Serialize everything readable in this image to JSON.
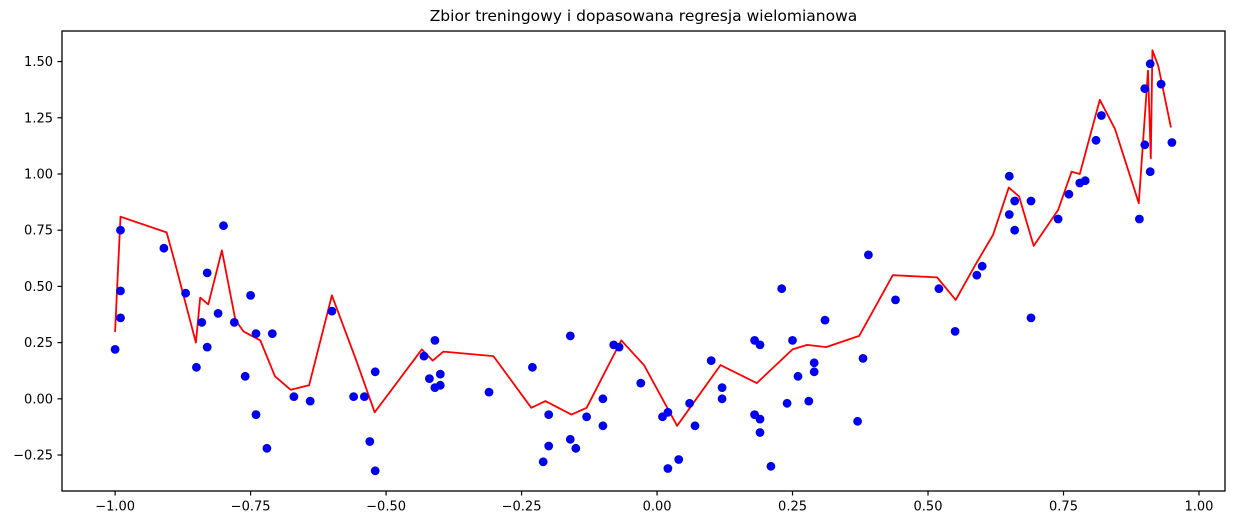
{
  "figure": {
    "background_color": "#ffffff",
    "axis_color": "#000000",
    "text_color": "#000000"
  },
  "chart_data": {
    "type": "scatter",
    "title": "Zbior treningowy i dopasowana regresja wielomianowa",
    "xlabel": "",
    "ylabel": "",
    "grid": false,
    "legend": "none",
    "xlim": [
      -1.098,
      1.048
    ],
    "ylim": [
      -0.41,
      1.636
    ],
    "x_tick_values": [
      -1.0,
      -0.75,
      -0.5,
      -0.25,
      0.0,
      0.25,
      0.5,
      0.75,
      1.0
    ],
    "x_tick_labels": [
      "−1.00",
      "−0.75",
      "−0.50",
      "−0.25",
      "0.00",
      "0.25",
      "0.50",
      "0.75",
      "1.00"
    ],
    "y_tick_values": [
      -0.25,
      0.0,
      0.25,
      0.5,
      0.75,
      1.0,
      1.25,
      1.5
    ],
    "y_tick_labels": [
      "−0.25",
      "0.00",
      "0.25",
      "0.50",
      "0.75",
      "1.00",
      "1.25",
      "1.50"
    ],
    "series": [
      {
        "name": "zbior-treningowy",
        "kind": "scatter",
        "color": "#0000f0",
        "marker": "circle",
        "marker_radius": 4.4,
        "points": [
          [
            -1.0,
            0.22
          ],
          [
            -0.99,
            0.36
          ],
          [
            -0.99,
            0.48
          ],
          [
            -0.99,
            0.75
          ],
          [
            -0.91,
            0.67
          ],
          [
            -0.87,
            0.47
          ],
          [
            -0.85,
            0.14
          ],
          [
            -0.84,
            0.34
          ],
          [
            -0.83,
            0.56
          ],
          [
            -0.83,
            0.23
          ],
          [
            -0.81,
            0.38
          ],
          [
            -0.8,
            0.77
          ],
          [
            -0.78,
            0.34
          ],
          [
            -0.76,
            0.1
          ],
          [
            -0.75,
            0.46
          ],
          [
            -0.74,
            0.29
          ],
          [
            -0.74,
            -0.07
          ],
          [
            -0.72,
            -0.22
          ],
          [
            -0.71,
            0.29
          ],
          [
            -0.67,
            0.01
          ],
          [
            -0.64,
            -0.01
          ],
          [
            -0.6,
            0.39
          ],
          [
            -0.56,
            0.01
          ],
          [
            -0.54,
            0.01
          ],
          [
            -0.53,
            -0.19
          ],
          [
            -0.52,
            -0.32
          ],
          [
            -0.52,
            0.12
          ],
          [
            -0.43,
            0.19
          ],
          [
            -0.42,
            0.09
          ],
          [
            -0.41,
            0.26
          ],
          [
            -0.41,
            0.05
          ],
          [
            -0.4,
            0.11
          ],
          [
            -0.4,
            0.06
          ],
          [
            -0.31,
            0.03
          ],
          [
            -0.23,
            0.14
          ],
          [
            -0.21,
            -0.28
          ],
          [
            -0.2,
            -0.07
          ],
          [
            -0.2,
            -0.21
          ],
          [
            -0.16,
            0.28
          ],
          [
            -0.16,
            -0.18
          ],
          [
            -0.15,
            -0.22
          ],
          [
            -0.13,
            -0.08
          ],
          [
            -0.1,
            0.0
          ],
          [
            -0.1,
            -0.12
          ],
          [
            -0.08,
            0.24
          ],
          [
            -0.07,
            0.23
          ],
          [
            -0.03,
            0.07
          ],
          [
            0.01,
            -0.08
          ],
          [
            0.02,
            -0.06
          ],
          [
            0.02,
            -0.31
          ],
          [
            0.04,
            -0.27
          ],
          [
            0.06,
            -0.02
          ],
          [
            0.07,
            -0.12
          ],
          [
            0.1,
            0.17
          ],
          [
            0.12,
            0.05
          ],
          [
            0.12,
            0.0
          ],
          [
            0.18,
            0.26
          ],
          [
            0.19,
            0.24
          ],
          [
            0.18,
            -0.07
          ],
          [
            0.19,
            -0.09
          ],
          [
            0.19,
            -0.15
          ],
          [
            0.21,
            -0.3
          ],
          [
            0.23,
            0.49
          ],
          [
            0.25,
            0.26
          ],
          [
            0.24,
            -0.02
          ],
          [
            0.26,
            0.1
          ],
          [
            0.28,
            -0.01
          ],
          [
            0.29,
            0.12
          ],
          [
            0.29,
            0.16
          ],
          [
            0.31,
            0.35
          ],
          [
            0.37,
            -0.1
          ],
          [
            0.38,
            0.18
          ],
          [
            0.39,
            0.64
          ],
          [
            0.44,
            0.44
          ],
          [
            0.52,
            0.49
          ],
          [
            0.55,
            0.3
          ],
          [
            0.59,
            0.55
          ],
          [
            0.6,
            0.59
          ],
          [
            0.65,
            0.99
          ],
          [
            0.65,
            0.82
          ],
          [
            0.66,
            0.88
          ],
          [
            0.66,
            0.75
          ],
          [
            0.69,
            0.88
          ],
          [
            0.69,
            0.36
          ],
          [
            0.74,
            0.8
          ],
          [
            0.76,
            0.91
          ],
          [
            0.78,
            0.96
          ],
          [
            0.79,
            0.97
          ],
          [
            0.81,
            1.15
          ],
          [
            0.82,
            1.26
          ],
          [
            0.89,
            0.8
          ],
          [
            0.9,
            1.13
          ],
          [
            0.9,
            1.38
          ],
          [
            0.91,
            1.49
          ],
          [
            0.91,
            1.01
          ],
          [
            0.93,
            1.4
          ],
          [
            0.95,
            1.14
          ]
        ]
      },
      {
        "name": "regresja-wielomianowa",
        "kind": "line",
        "color": "#ff0000",
        "stroke_width": 1.8,
        "points": [
          [
            -1.0,
            0.3
          ],
          [
            -0.99,
            0.81
          ],
          [
            -0.905,
            0.74
          ],
          [
            -0.89,
            0.61
          ],
          [
            -0.851,
            0.25
          ],
          [
            -0.843,
            0.45
          ],
          [
            -0.828,
            0.42
          ],
          [
            -0.803,
            0.66
          ],
          [
            -0.778,
            0.35
          ],
          [
            -0.763,
            0.3
          ],
          [
            -0.732,
            0.26
          ],
          [
            -0.705,
            0.1
          ],
          [
            -0.676,
            0.04
          ],
          [
            -0.642,
            0.06
          ],
          [
            -0.6,
            0.46
          ],
          [
            -0.555,
            0.17
          ],
          [
            -0.521,
            -0.06
          ],
          [
            -0.434,
            0.22
          ],
          [
            -0.414,
            0.17
          ],
          [
            -0.394,
            0.21
          ],
          [
            -0.302,
            0.19
          ],
          [
            -0.232,
            -0.04
          ],
          [
            -0.206,
            -0.01
          ],
          [
            -0.158,
            -0.07
          ],
          [
            -0.13,
            -0.04
          ],
          [
            -0.066,
            0.26
          ],
          [
            -0.024,
            0.15
          ],
          [
            0.037,
            -0.12
          ],
          [
            0.117,
            0.15
          ],
          [
            0.184,
            0.07
          ],
          [
            0.25,
            0.22
          ],
          [
            0.277,
            0.24
          ],
          [
            0.312,
            0.23
          ],
          [
            0.373,
            0.28
          ],
          [
            0.435,
            0.55
          ],
          [
            0.517,
            0.54
          ],
          [
            0.551,
            0.44
          ],
          [
            0.586,
            0.59
          ],
          [
            0.62,
            0.73
          ],
          [
            0.649,
            0.94
          ],
          [
            0.668,
            0.9
          ],
          [
            0.695,
            0.68
          ],
          [
            0.74,
            0.84
          ],
          [
            0.765,
            1.01
          ],
          [
            0.78,
            1.0
          ],
          [
            0.817,
            1.33
          ],
          [
            0.845,
            1.2
          ],
          [
            0.889,
            0.87
          ],
          [
            0.906,
            1.46
          ],
          [
            0.911,
            1.07
          ],
          [
            0.914,
            1.55
          ],
          [
            0.925,
            1.48
          ],
          [
            0.948,
            1.21
          ]
        ]
      }
    ]
  }
}
